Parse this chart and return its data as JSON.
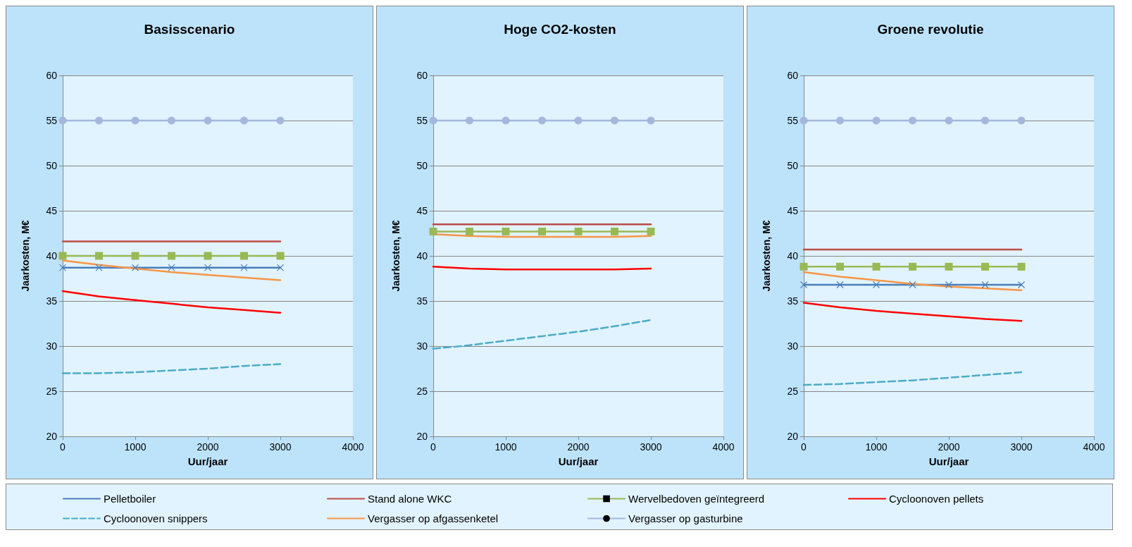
{
  "chart_data": [
    {
      "type": "line",
      "title": "Basisscenario",
      "xlabel": "Uur/jaar",
      "ylabel": "Jaarkosten, M€",
      "x": [
        0,
        500,
        1000,
        1500,
        2000,
        2500,
        3000
      ],
      "xlim": [
        0,
        4000
      ],
      "xticks": [
        0,
        1000,
        2000,
        3000,
        4000
      ],
      "ylim": [
        20,
        60
      ],
      "yticks": [
        20,
        25,
        30,
        35,
        40,
        45,
        50,
        55,
        60
      ],
      "grid": "y",
      "legend": "bottom",
      "series": [
        {
          "name": "Pelletboiler",
          "color": "#4a7ebb",
          "marker": "cross",
          "line_style": "solid",
          "values": [
            38.7,
            38.7,
            38.7,
            38.7,
            38.7,
            38.7,
            38.7
          ]
        },
        {
          "name": "Stand alone WKC",
          "color": "#be4b48",
          "marker": "none",
          "line_style": "solid",
          "values": [
            41.6,
            41.6,
            41.6,
            41.6,
            41.6,
            41.6,
            41.6
          ]
        },
        {
          "name": "Wervelbedoven geïntegreerd",
          "color": "#98b954",
          "marker": "square",
          "line_style": "solid",
          "values": [
            40,
            40,
            40,
            40,
            40,
            40,
            40
          ]
        },
        {
          "name": "Cycloonoven pellets",
          "color": "#ff0000",
          "marker": "none",
          "line_style": "solid",
          "values": [
            36.1,
            35.5,
            35.1,
            34.7,
            34.3,
            34,
            33.7
          ]
        },
        {
          "name": "Cycloonoven snippers",
          "color": "#4bacc6",
          "marker": "none",
          "line_style": "dashed",
          "values": [
            27,
            27,
            27.1,
            27.3,
            27.5,
            27.8,
            28
          ]
        },
        {
          "name": "Vergasser op afgassenketel",
          "color": "#f79646",
          "marker": "none",
          "line_style": "solid",
          "values": [
            39.5,
            39,
            38.6,
            38.2,
            37.9,
            37.6,
            37.3
          ]
        },
        {
          "name": "Vergasser op gasturbine",
          "color": "#a5b7dd",
          "marker": "circle",
          "line_style": "solid",
          "values": [
            55,
            55,
            55,
            55,
            55,
            55,
            55
          ]
        }
      ]
    },
    {
      "type": "line",
      "title": "Hoge CO2-kosten",
      "xlabel": "Uur/jaar",
      "ylabel": "Jaarkosten, M€",
      "x": [
        0,
        500,
        1000,
        1500,
        2000,
        2500,
        3000
      ],
      "xlim": [
        0,
        4000
      ],
      "xticks": [
        0,
        1000,
        2000,
        3000,
        4000
      ],
      "ylim": [
        20,
        60
      ],
      "yticks": [
        20,
        25,
        30,
        35,
        40,
        45,
        50,
        55,
        60
      ],
      "grid": "y",
      "series": [
        {
          "color": "#4a7ebb",
          "marker": "cross",
          "line_style": "solid",
          "values": [
            null,
            null,
            null,
            null,
            null,
            null,
            null
          ]
        },
        {
          "color": "#be4b48",
          "marker": "none",
          "line_style": "solid",
          "values": [
            43.5,
            43.5,
            43.5,
            43.5,
            43.5,
            43.5,
            43.5
          ]
        },
        {
          "color": "#98b954",
          "marker": "square",
          "line_style": "solid",
          "values": [
            42.7,
            42.7,
            42.7,
            42.7,
            42.7,
            42.7,
            42.7
          ]
        },
        {
          "color": "#ff0000",
          "marker": "none",
          "line_style": "solid",
          "values": [
            38.8,
            38.6,
            38.5,
            38.5,
            38.5,
            38.5,
            38.6
          ]
        },
        {
          "color": "#4bacc6",
          "marker": "none",
          "line_style": "dashed",
          "values": [
            29.7,
            30.1,
            30.6,
            31.1,
            31.6,
            32.2,
            32.9
          ]
        },
        {
          "color": "#f79646",
          "marker": "none",
          "line_style": "solid",
          "values": [
            42.4,
            42.2,
            42.1,
            42.1,
            42.1,
            42.1,
            42.2
          ]
        },
        {
          "color": "#a5b7dd",
          "marker": "circle",
          "line_style": "solid",
          "values": [
            55,
            55,
            55,
            55,
            55,
            55,
            55
          ]
        }
      ]
    },
    {
      "type": "line",
      "title": "Groene revolutie",
      "xlabel": "Uur/jaar",
      "ylabel": "Jaarkosten, M€",
      "x": [
        0,
        500,
        1000,
        1500,
        2000,
        2500,
        3000
      ],
      "xlim": [
        0,
        4000
      ],
      "xticks": [
        0,
        1000,
        2000,
        3000,
        4000
      ],
      "ylim": [
        20,
        60
      ],
      "yticks": [
        20,
        25,
        30,
        35,
        40,
        45,
        50,
        55,
        60
      ],
      "grid": "y",
      "series": [
        {
          "color": "#4a7ebb",
          "marker": "cross",
          "line_style": "solid",
          "values": [
            36.8,
            36.8,
            36.8,
            36.8,
            36.8,
            36.8,
            36.8
          ]
        },
        {
          "color": "#be4b48",
          "marker": "none",
          "line_style": "solid",
          "values": [
            40.7,
            40.7,
            40.7,
            40.7,
            40.7,
            40.7,
            40.7
          ]
        },
        {
          "color": "#98b954",
          "marker": "square",
          "line_style": "solid",
          "values": [
            38.8,
            38.8,
            38.8,
            38.8,
            38.8,
            38.8,
            38.8
          ]
        },
        {
          "color": "#ff0000",
          "marker": "none",
          "line_style": "solid",
          "values": [
            34.8,
            34.3,
            33.9,
            33.6,
            33.3,
            33,
            32.8
          ]
        },
        {
          "color": "#4bacc6",
          "marker": "none",
          "line_style": "dashed",
          "values": [
            25.7,
            25.8,
            26,
            26.2,
            26.5,
            26.8,
            27.1
          ]
        },
        {
          "color": "#f79646",
          "marker": "none",
          "line_style": "solid",
          "values": [
            38.2,
            37.7,
            37.3,
            36.9,
            36.6,
            36.4,
            36.2
          ]
        },
        {
          "color": "#a5b7dd",
          "marker": "circle",
          "line_style": "solid",
          "values": [
            55,
            55,
            55,
            55,
            55,
            55,
            55
          ]
        }
      ]
    }
  ]
}
